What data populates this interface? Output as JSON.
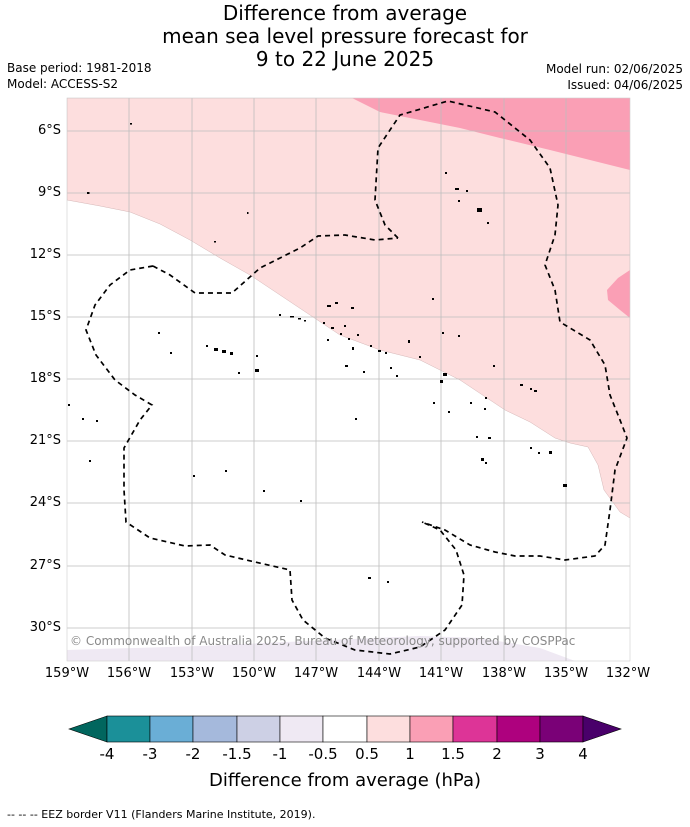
{
  "title": {
    "line1": "Difference from average",
    "line2": "mean sea level pressure forecast for",
    "line3": "9 to 22 June 2025"
  },
  "meta": {
    "base_period": "Base period: 1981-2018",
    "model": "Model: ACCESS-S2",
    "model_run": "Model run: 02/06/2025",
    "issued": "Issued: 04/06/2025"
  },
  "map": {
    "lat_labels": [
      "6°S",
      "9°S",
      "12°S",
      "15°S",
      "18°S",
      "21°S",
      "24°S",
      "27°S",
      "30°S"
    ],
    "lon_labels": [
      "159°W",
      "156°W",
      "153°W",
      "150°W",
      "147°W",
      "144°W",
      "141°W",
      "138°W",
      "135°W",
      "132°W"
    ],
    "copyright": "© Commonwealth of Australia 2025, Bureau of Meteorology, supported by COSPPac",
    "eez_line_color": "#000000"
  },
  "colorbar": {
    "ticks": [
      "-4",
      "-3",
      "-2",
      "-1.5",
      "-1",
      "-0.5",
      "0.5",
      "1",
      "1.5",
      "2",
      "3",
      "4"
    ],
    "colors": [
      "#01665e",
      "#1b9099",
      "#6aaed6",
      "#a5b9dc",
      "#cdd0e5",
      "#efe9f3",
      "#ffffff",
      "#fddede",
      "#fa9fb5",
      "#dd3497",
      "#ae017e",
      "#7a0177",
      "#49006a"
    ],
    "label": "Difference from average (hPa)"
  },
  "footer": "--  --  -- EEZ border V11 (Flanders Marine Institute, 2019)."
}
